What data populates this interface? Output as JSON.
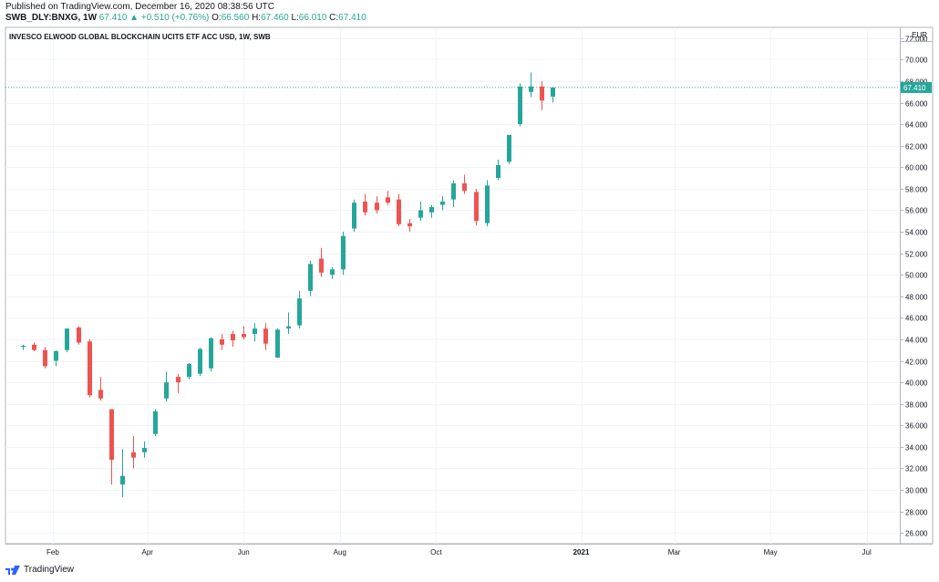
{
  "header": {
    "published": "Published on TradingView.com, December 16, 2020 08:38:56 UTC",
    "symbol": "SWB_DLY:BNXG, 1W",
    "last": "67.410",
    "change": "+0.510 (+0.76%)",
    "o_label": "O:",
    "o": "66.560",
    "h_label": "H:",
    "h": "67.460",
    "l_label": "L:",
    "l": "66.010",
    "c_label": "C:",
    "c": "67.410"
  },
  "footer": {
    "brand": "TradingView"
  },
  "colors": {
    "up": "#26a69a",
    "down": "#ef5350",
    "grid": "#f0f3fa",
    "axis": "#131722",
    "border": "#b2b5be"
  },
  "chart_data": {
    "type": "candlestick",
    "title": "INVESCO ELWOOD GLOBAL BLOCKCHAIN UCITS ETF ACC USD, 1W, SWB",
    "currency": "EUR",
    "ylim": [
      25,
      73
    ],
    "yticks": [
      26,
      28,
      30,
      32,
      34,
      36,
      38,
      40,
      42,
      44,
      46,
      48,
      50,
      52,
      54,
      56,
      58,
      60,
      62,
      64,
      66,
      68,
      70,
      72
    ],
    "ytick_labels": [
      "26.000",
      "28.000",
      "30.000",
      "32.000",
      "34.000",
      "36.000",
      "38.000",
      "40.000",
      "42.000",
      "44.000",
      "46.000",
      "48.000",
      "50.000",
      "52.000",
      "54.000",
      "56.000",
      "58.000",
      "60.000",
      "62.000",
      "64.000",
      "66.000",
      "68.000",
      "70.000",
      "72.000"
    ],
    "xlim": [
      "2020-01-02",
      "2021-07-22"
    ],
    "xticks": [
      {
        "date": "2020-02-01",
        "label": "Feb",
        "bold": false
      },
      {
        "date": "2020-04-01",
        "label": "Apr",
        "bold": false
      },
      {
        "date": "2020-06-01",
        "label": "Jun",
        "bold": false
      },
      {
        "date": "2020-08-01",
        "label": "Aug",
        "bold": false
      },
      {
        "date": "2020-10-01",
        "label": "Oct",
        "bold": false
      },
      {
        "date": "2021-01-01",
        "label": "2021",
        "bold": true
      },
      {
        "date": "2021-03-01",
        "label": "Mar",
        "bold": false
      },
      {
        "date": "2021-05-01",
        "label": "May",
        "bold": false
      },
      {
        "date": "2021-07-01",
        "label": "Jul",
        "bold": false
      }
    ],
    "last_price": 67.41,
    "last_price_label": "67.410",
    "candles": [
      {
        "date": "2020-01-13",
        "o": 43.3,
        "h": 43.5,
        "l": 43.0,
        "c": 43.4
      },
      {
        "date": "2020-01-20",
        "o": 43.5,
        "h": 43.7,
        "l": 42.9,
        "c": 43.0
      },
      {
        "date": "2020-01-27",
        "o": 43.0,
        "h": 43.3,
        "l": 41.3,
        "c": 41.5
      },
      {
        "date": "2020-02-03",
        "o": 42.0,
        "h": 43.0,
        "l": 41.5,
        "c": 42.9
      },
      {
        "date": "2020-02-10",
        "o": 43.0,
        "h": 45.0,
        "l": 42.8,
        "c": 45.0
      },
      {
        "date": "2020-02-17",
        "o": 45.1,
        "h": 45.2,
        "l": 43.5,
        "c": 43.7
      },
      {
        "date": "2020-02-24",
        "o": 43.8,
        "h": 44.0,
        "l": 38.6,
        "c": 38.8
      },
      {
        "date": "2020-03-02",
        "o": 39.3,
        "h": 40.5,
        "l": 38.3,
        "c": 38.5
      },
      {
        "date": "2020-03-09",
        "o": 37.5,
        "h": 37.5,
        "l": 30.5,
        "c": 32.8
      },
      {
        "date": "2020-03-16",
        "o": 30.5,
        "h": 33.8,
        "l": 29.3,
        "c": 31.3
      },
      {
        "date": "2020-03-23",
        "o": 33.5,
        "h": 35.0,
        "l": 32.0,
        "c": 33.0
      },
      {
        "date": "2020-03-30",
        "o": 33.5,
        "h": 34.5,
        "l": 33.0,
        "c": 33.9
      },
      {
        "date": "2020-04-06",
        "o": 35.2,
        "h": 37.5,
        "l": 35.0,
        "c": 37.3
      },
      {
        "date": "2020-04-13",
        "o": 38.5,
        "h": 41.0,
        "l": 38.2,
        "c": 40.0
      },
      {
        "date": "2020-04-20",
        "o": 40.5,
        "h": 40.8,
        "l": 39.0,
        "c": 40.0
      },
      {
        "date": "2020-04-27",
        "o": 40.5,
        "h": 41.8,
        "l": 40.3,
        "c": 41.7
      },
      {
        "date": "2020-05-04",
        "o": 40.8,
        "h": 43.2,
        "l": 40.6,
        "c": 43.1
      },
      {
        "date": "2020-05-11",
        "o": 41.3,
        "h": 44.2,
        "l": 41.0,
        "c": 44.1
      },
      {
        "date": "2020-05-18",
        "o": 44.0,
        "h": 44.5,
        "l": 43.0,
        "c": 43.5
      },
      {
        "date": "2020-05-25",
        "o": 44.5,
        "h": 44.8,
        "l": 43.3,
        "c": 43.9
      },
      {
        "date": "2020-06-01",
        "o": 44.5,
        "h": 45.2,
        "l": 44.0,
        "c": 44.2
      },
      {
        "date": "2020-06-08",
        "o": 44.5,
        "h": 45.5,
        "l": 43.8,
        "c": 45.0
      },
      {
        "date": "2020-06-15",
        "o": 45.0,
        "h": 45.5,
        "l": 43.0,
        "c": 43.6
      },
      {
        "date": "2020-06-22",
        "o": 42.3,
        "h": 45.0,
        "l": 42.3,
        "c": 44.9
      },
      {
        "date": "2020-06-29",
        "o": 45.0,
        "h": 46.5,
        "l": 44.5,
        "c": 45.2
      },
      {
        "date": "2020-07-06",
        "o": 45.3,
        "h": 48.5,
        "l": 45.0,
        "c": 47.8
      },
      {
        "date": "2020-07-13",
        "o": 48.5,
        "h": 51.3,
        "l": 48.0,
        "c": 51.0
      },
      {
        "date": "2020-07-20",
        "o": 51.5,
        "h": 52.5,
        "l": 49.8,
        "c": 50.2
      },
      {
        "date": "2020-07-27",
        "o": 50.0,
        "h": 50.7,
        "l": 49.6,
        "c": 50.5
      },
      {
        "date": "2020-08-03",
        "o": 50.5,
        "h": 54.0,
        "l": 50.0,
        "c": 53.6
      },
      {
        "date": "2020-08-10",
        "o": 54.3,
        "h": 57.0,
        "l": 54.0,
        "c": 56.7
      },
      {
        "date": "2020-08-17",
        "o": 56.8,
        "h": 57.5,
        "l": 55.5,
        "c": 55.8
      },
      {
        "date": "2020-08-24",
        "o": 56.7,
        "h": 57.3,
        "l": 55.7,
        "c": 56.0
      },
      {
        "date": "2020-08-31",
        "o": 57.2,
        "h": 57.8,
        "l": 56.5,
        "c": 56.7
      },
      {
        "date": "2020-09-07",
        "o": 57.0,
        "h": 57.5,
        "l": 54.5,
        "c": 54.7
      },
      {
        "date": "2020-09-14",
        "o": 54.8,
        "h": 55.2,
        "l": 54.0,
        "c": 54.5
      },
      {
        "date": "2020-09-21",
        "o": 55.3,
        "h": 56.8,
        "l": 55.0,
        "c": 56.0
      },
      {
        "date": "2020-09-28",
        "o": 55.8,
        "h": 56.5,
        "l": 55.3,
        "c": 56.3
      },
      {
        "date": "2020-10-05",
        "o": 56.5,
        "h": 57.3,
        "l": 56.0,
        "c": 56.8
      },
      {
        "date": "2020-10-12",
        "o": 57.0,
        "h": 58.8,
        "l": 56.3,
        "c": 58.5
      },
      {
        "date": "2020-10-19",
        "o": 58.5,
        "h": 59.3,
        "l": 57.5,
        "c": 57.8
      },
      {
        "date": "2020-10-26",
        "o": 57.7,
        "h": 58.0,
        "l": 54.6,
        "c": 55.0
      },
      {
        "date": "2020-11-02",
        "o": 54.8,
        "h": 58.8,
        "l": 54.5,
        "c": 58.3
      },
      {
        "date": "2020-11-09",
        "o": 59.0,
        "h": 60.7,
        "l": 58.8,
        "c": 60.2
      },
      {
        "date": "2020-11-16",
        "o": 60.5,
        "h": 63.0,
        "l": 60.3,
        "c": 63.0
      },
      {
        "date": "2020-11-23",
        "o": 64.0,
        "h": 67.8,
        "l": 63.8,
        "c": 67.5
      },
      {
        "date": "2020-11-30",
        "o": 67.0,
        "h": 68.8,
        "l": 66.5,
        "c": 67.5
      },
      {
        "date": "2020-12-07",
        "o": 67.5,
        "h": 68.0,
        "l": 65.3,
        "c": 66.2
      },
      {
        "date": "2020-12-14",
        "o": 66.56,
        "h": 67.46,
        "l": 66.01,
        "c": 67.41
      }
    ]
  }
}
